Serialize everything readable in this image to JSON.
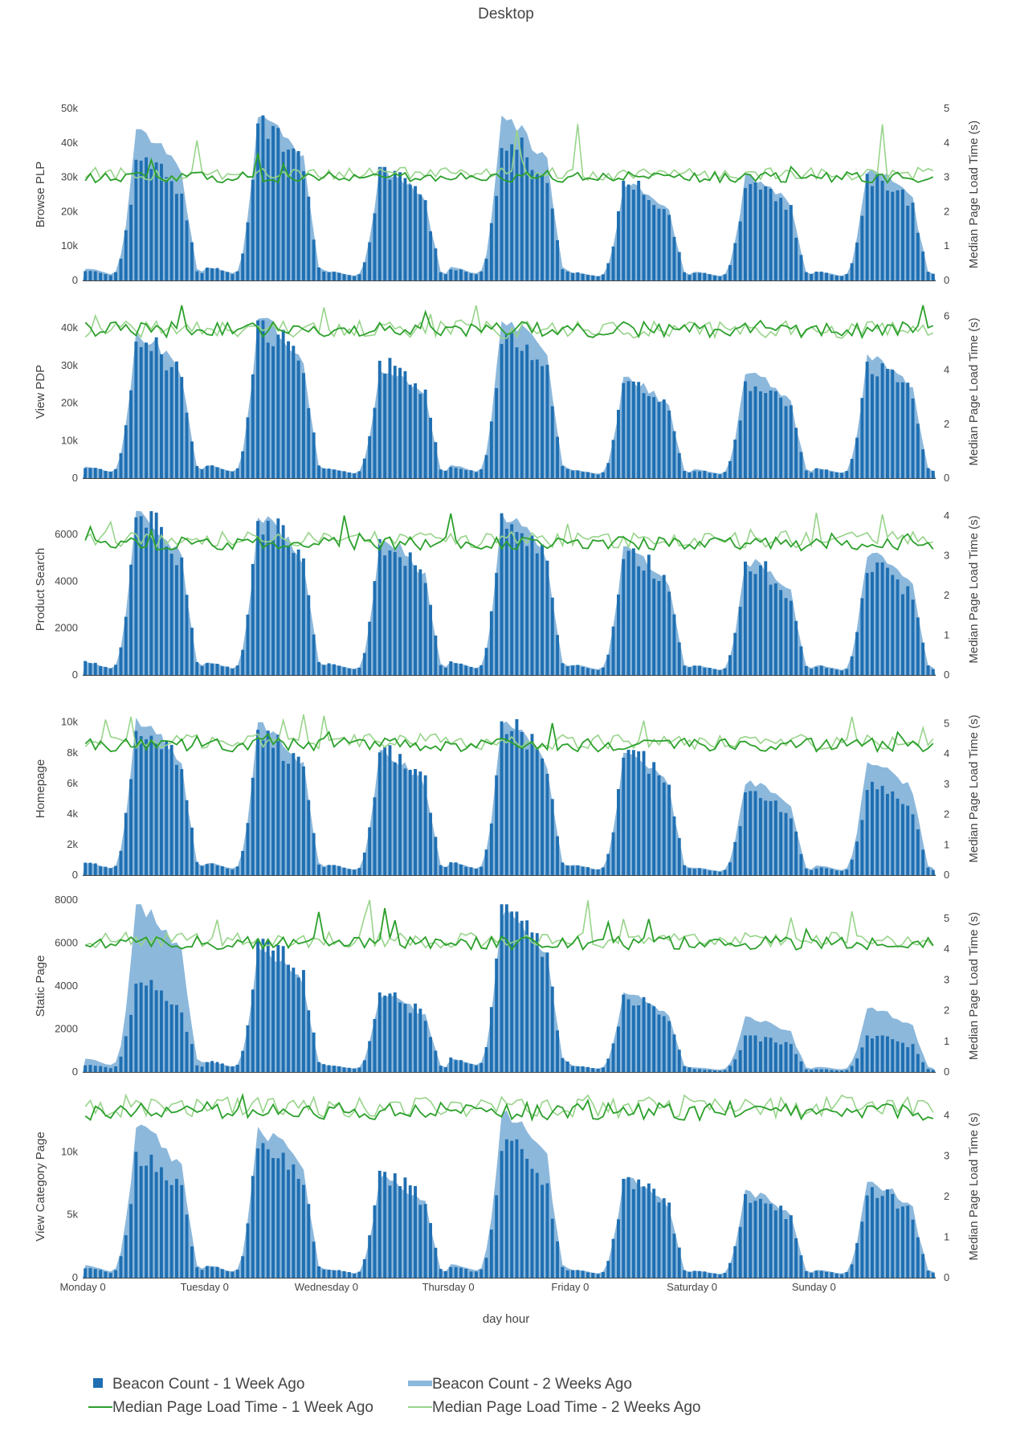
{
  "title": "Desktop",
  "xlabel": "day hour",
  "right_axis_label": "Median Page Load Time (s)",
  "x_ticks": [
    "Monday 0",
    "Tuesday 0",
    "Wednesday 0",
    "Thursday 0",
    "Friday 0",
    "Saturday 0",
    "Sunday 0"
  ],
  "colors": {
    "bar": "#1f6fb2",
    "area": "#8cb8dc",
    "line_1w": "#2ca02c",
    "line_2w": "#98d48b"
  },
  "legend": [
    {
      "label": "Beacon Count - 1 Week Ago",
      "kind": "bar-square"
    },
    {
      "label": "Beacon Count - 2 Weeks Ago",
      "kind": "area-swatch"
    },
    {
      "label": "Median Page Load Time - 1 Week Ago",
      "kind": "line-dark"
    },
    {
      "label": "Median Page Load Time - 2 Weeks Ago",
      "kind": "line-light"
    }
  ],
  "chart_data": [
    {
      "panel": "Browse PLP",
      "type": "bar+area+line",
      "ylabel": "Browse PLP",
      "left_ticks": [
        "0",
        "10k",
        "20k",
        "30k",
        "40k",
        "50k"
      ],
      "left_range": [
        0,
        50000
      ],
      "right_ticks": [
        "0",
        "1",
        "2",
        "3",
        "4",
        "5"
      ],
      "right_range": [
        0,
        5
      ],
      "beacon_1w_daily_peak": [
        37000,
        48000,
        33000,
        42000,
        29000,
        29000,
        31000
      ],
      "beacon_2w_daily_peak": [
        44000,
        49000,
        33000,
        48000,
        29000,
        31000,
        33000
      ],
      "load_1w_level": 3.0,
      "load_1w_peak": 4.1,
      "load_2w_level": 3.1,
      "load_2w_peak": 5.0
    },
    {
      "panel": "View PDP",
      "type": "bar+area+line",
      "ylabel": "View PDP",
      "left_ticks": [
        "0",
        "10k",
        "20k",
        "30k",
        "40k"
      ],
      "left_range": [
        0,
        46000
      ],
      "right_ticks": [
        "0",
        "2",
        "4",
        "6"
      ],
      "right_range": [
        0,
        6.4
      ],
      "beacon_1w_daily_peak": [
        38000,
        42000,
        32000,
        39000,
        26000,
        26000,
        31000
      ],
      "beacon_2w_daily_peak": [
        39000,
        43000,
        30000,
        44000,
        27000,
        29000,
        33000
      ],
      "load_1w_level": 5.5,
      "load_1w_peak": 6.7,
      "load_2w_level": 5.5,
      "load_2w_peak": 6.3
    },
    {
      "panel": "Product Search",
      "type": "bar+area+line",
      "ylabel": "Product Search",
      "left_ticks": [
        "0",
        "2000",
        "4000",
        "6000"
      ],
      "left_range": [
        0,
        7300
      ],
      "right_ticks": [
        "0",
        "1",
        "2",
        "3",
        "4"
      ],
      "right_range": [
        0,
        4.3
      ],
      "beacon_1w_daily_peak": [
        7000,
        6800,
        5800,
        6900,
        5400,
        4900,
        4800
      ],
      "beacon_2w_daily_peak": [
        7000,
        6800,
        5900,
        6900,
        5500,
        5000,
        5300
      ],
      "load_1w_level": 3.3,
      "load_1w_peak": 4.4,
      "load_2w_level": 3.4,
      "load_2w_peak": 4.2
    },
    {
      "panel": "Homepage",
      "type": "bar+area+line",
      "ylabel": "Homepage",
      "left_ticks": [
        "0",
        "2k",
        "4k",
        "6k",
        "8k",
        "10k"
      ],
      "left_range": [
        0,
        11300
      ],
      "right_ticks": [
        "0",
        "1",
        "2",
        "3",
        "4",
        "5"
      ],
      "right_range": [
        0,
        5.7
      ],
      "beacon_1w_daily_peak": [
        10300,
        9500,
        8500,
        10200,
        8200,
        5500,
        6100
      ],
      "beacon_2w_daily_peak": [
        10300,
        10000,
        8200,
        10200,
        8200,
        6200,
        7800
      ],
      "load_1w_level": 4.3,
      "load_1w_peak": 5.0,
      "load_2w_level": 4.4,
      "load_2w_peak": 5.6
    },
    {
      "panel": "Static Page",
      "type": "bar+area+line",
      "ylabel": "Static Page",
      "left_ticks": [
        "0",
        "2000",
        "4000",
        "6000",
        "8000"
      ],
      "left_range": [
        0,
        8000
      ],
      "right_ticks": [
        "0",
        "1",
        "2",
        "3",
        "4",
        "5"
      ],
      "right_range": [
        0,
        5.6
      ],
      "beacon_1w_daily_peak": [
        4300,
        6200,
        3700,
        7800,
        3600,
        1700,
        1700
      ],
      "beacon_2w_daily_peak": [
        7800,
        5800,
        3700,
        7600,
        3700,
        2600,
        3000
      ],
      "load_1w_level": 4.2,
      "load_1w_peak": 5.2,
      "load_2w_level": 4.3,
      "load_2w_peak": 5.7
    },
    {
      "panel": "View Category Page",
      "type": "bar+area+line",
      "ylabel": "View Category Page",
      "left_ticks": [
        "0",
        "5k",
        "10k"
      ],
      "left_range": [
        0,
        14500
      ],
      "right_ticks": [
        "0",
        "1",
        "2",
        "3",
        "4"
      ],
      "right_range": [
        0,
        4.5
      ],
      "beacon_1w_daily_peak": [
        10000,
        11500,
        8500,
        11000,
        8000,
        6700,
        7200
      ],
      "beacon_2w_daily_peak": [
        12200,
        12000,
        8200,
        13500,
        8000,
        7000,
        7800
      ],
      "load_1w_level": 4.1,
      "load_1w_peak": 4.6,
      "load_2w_level": 4.2,
      "load_2w_peak": 4.6
    }
  ]
}
